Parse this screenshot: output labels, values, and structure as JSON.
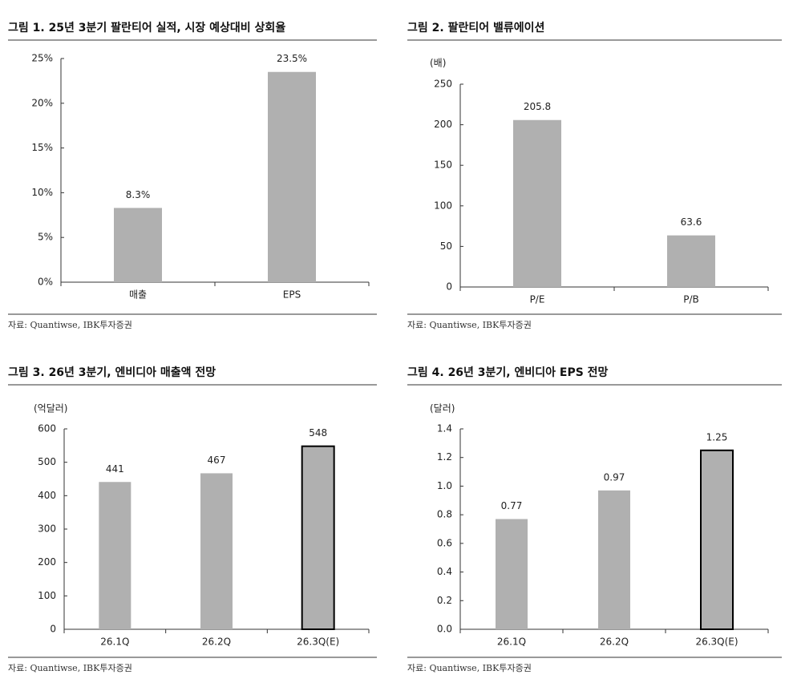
{
  "chart_data": [
    {
      "type": "bar",
      "title": "그림 1. 25년 3분기 팔란티어 실적, 시장 예상대비 상회율",
      "categories": [
        "매출",
        "EPS"
      ],
      "values": [
        8.3,
        23.5
      ],
      "value_labels": [
        "8.3%",
        "23.5%"
      ],
      "color": "#b0b0b0",
      "ylim": [
        0,
        25
      ],
      "yticks": [
        {
          "value": 0,
          "label": "0%"
        },
        {
          "value": 5,
          "label": "5%"
        },
        {
          "value": 10,
          "label": "10%"
        },
        {
          "value": 15,
          "label": "15%"
        },
        {
          "value": 20,
          "label": "20%"
        },
        {
          "value": 25,
          "label": "25%"
        }
      ],
      "source": "자료: Quantiwse, IBK투자증권"
    },
    {
      "type": "bar",
      "title": "그림 2. 팔란티어 밸류에이션",
      "unit": "(배)",
      "categories": [
        "P/E",
        "P/B"
      ],
      "values": [
        205.8,
        63.6
      ],
      "color": "#b0b0b0",
      "ylim": [
        0,
        250
      ],
      "yticks": [
        0,
        50,
        100,
        150,
        200,
        250
      ],
      "source": "자료: Quantiwse, IBK투자증권"
    },
    {
      "type": "bar",
      "title": "그림 3. 26년 3분기, 엔비디아 매출액 전망",
      "unit": "(억달러)",
      "categories": [
        "26.1Q",
        "26.2Q",
        "26.3Q(E)"
      ],
      "values": [
        441,
        467,
        548
      ],
      "color": "#b0b0b0",
      "highlight": 2,
      "ylim": [
        0,
        600
      ],
      "yticks": [
        0,
        100,
        200,
        300,
        400,
        500,
        600
      ],
      "source": "자료: Quantiwse, IBK투자증권"
    },
    {
      "type": "bar",
      "title": "그림 4. 26년 3분기, 엔비디아 EPS 전망",
      "unit": "(달러)",
      "categories": [
        "26.1Q",
        "26.2Q",
        "26.3Q(E)"
      ],
      "values": [
        0.77,
        0.97,
        1.25
      ],
      "color": "#b0b0b0",
      "highlight": 2,
      "ylim": [
        0,
        1.4
      ],
      "yticks": [
        {
          "value": 0,
          "label": "0.0"
        },
        0.2,
        0.4,
        0.6,
        0.8,
        {
          "value": 1,
          "label": "1.0"
        },
        1.2,
        1.4
      ],
      "source": "자료: Quantiwse, IBK투자증권"
    }
  ]
}
